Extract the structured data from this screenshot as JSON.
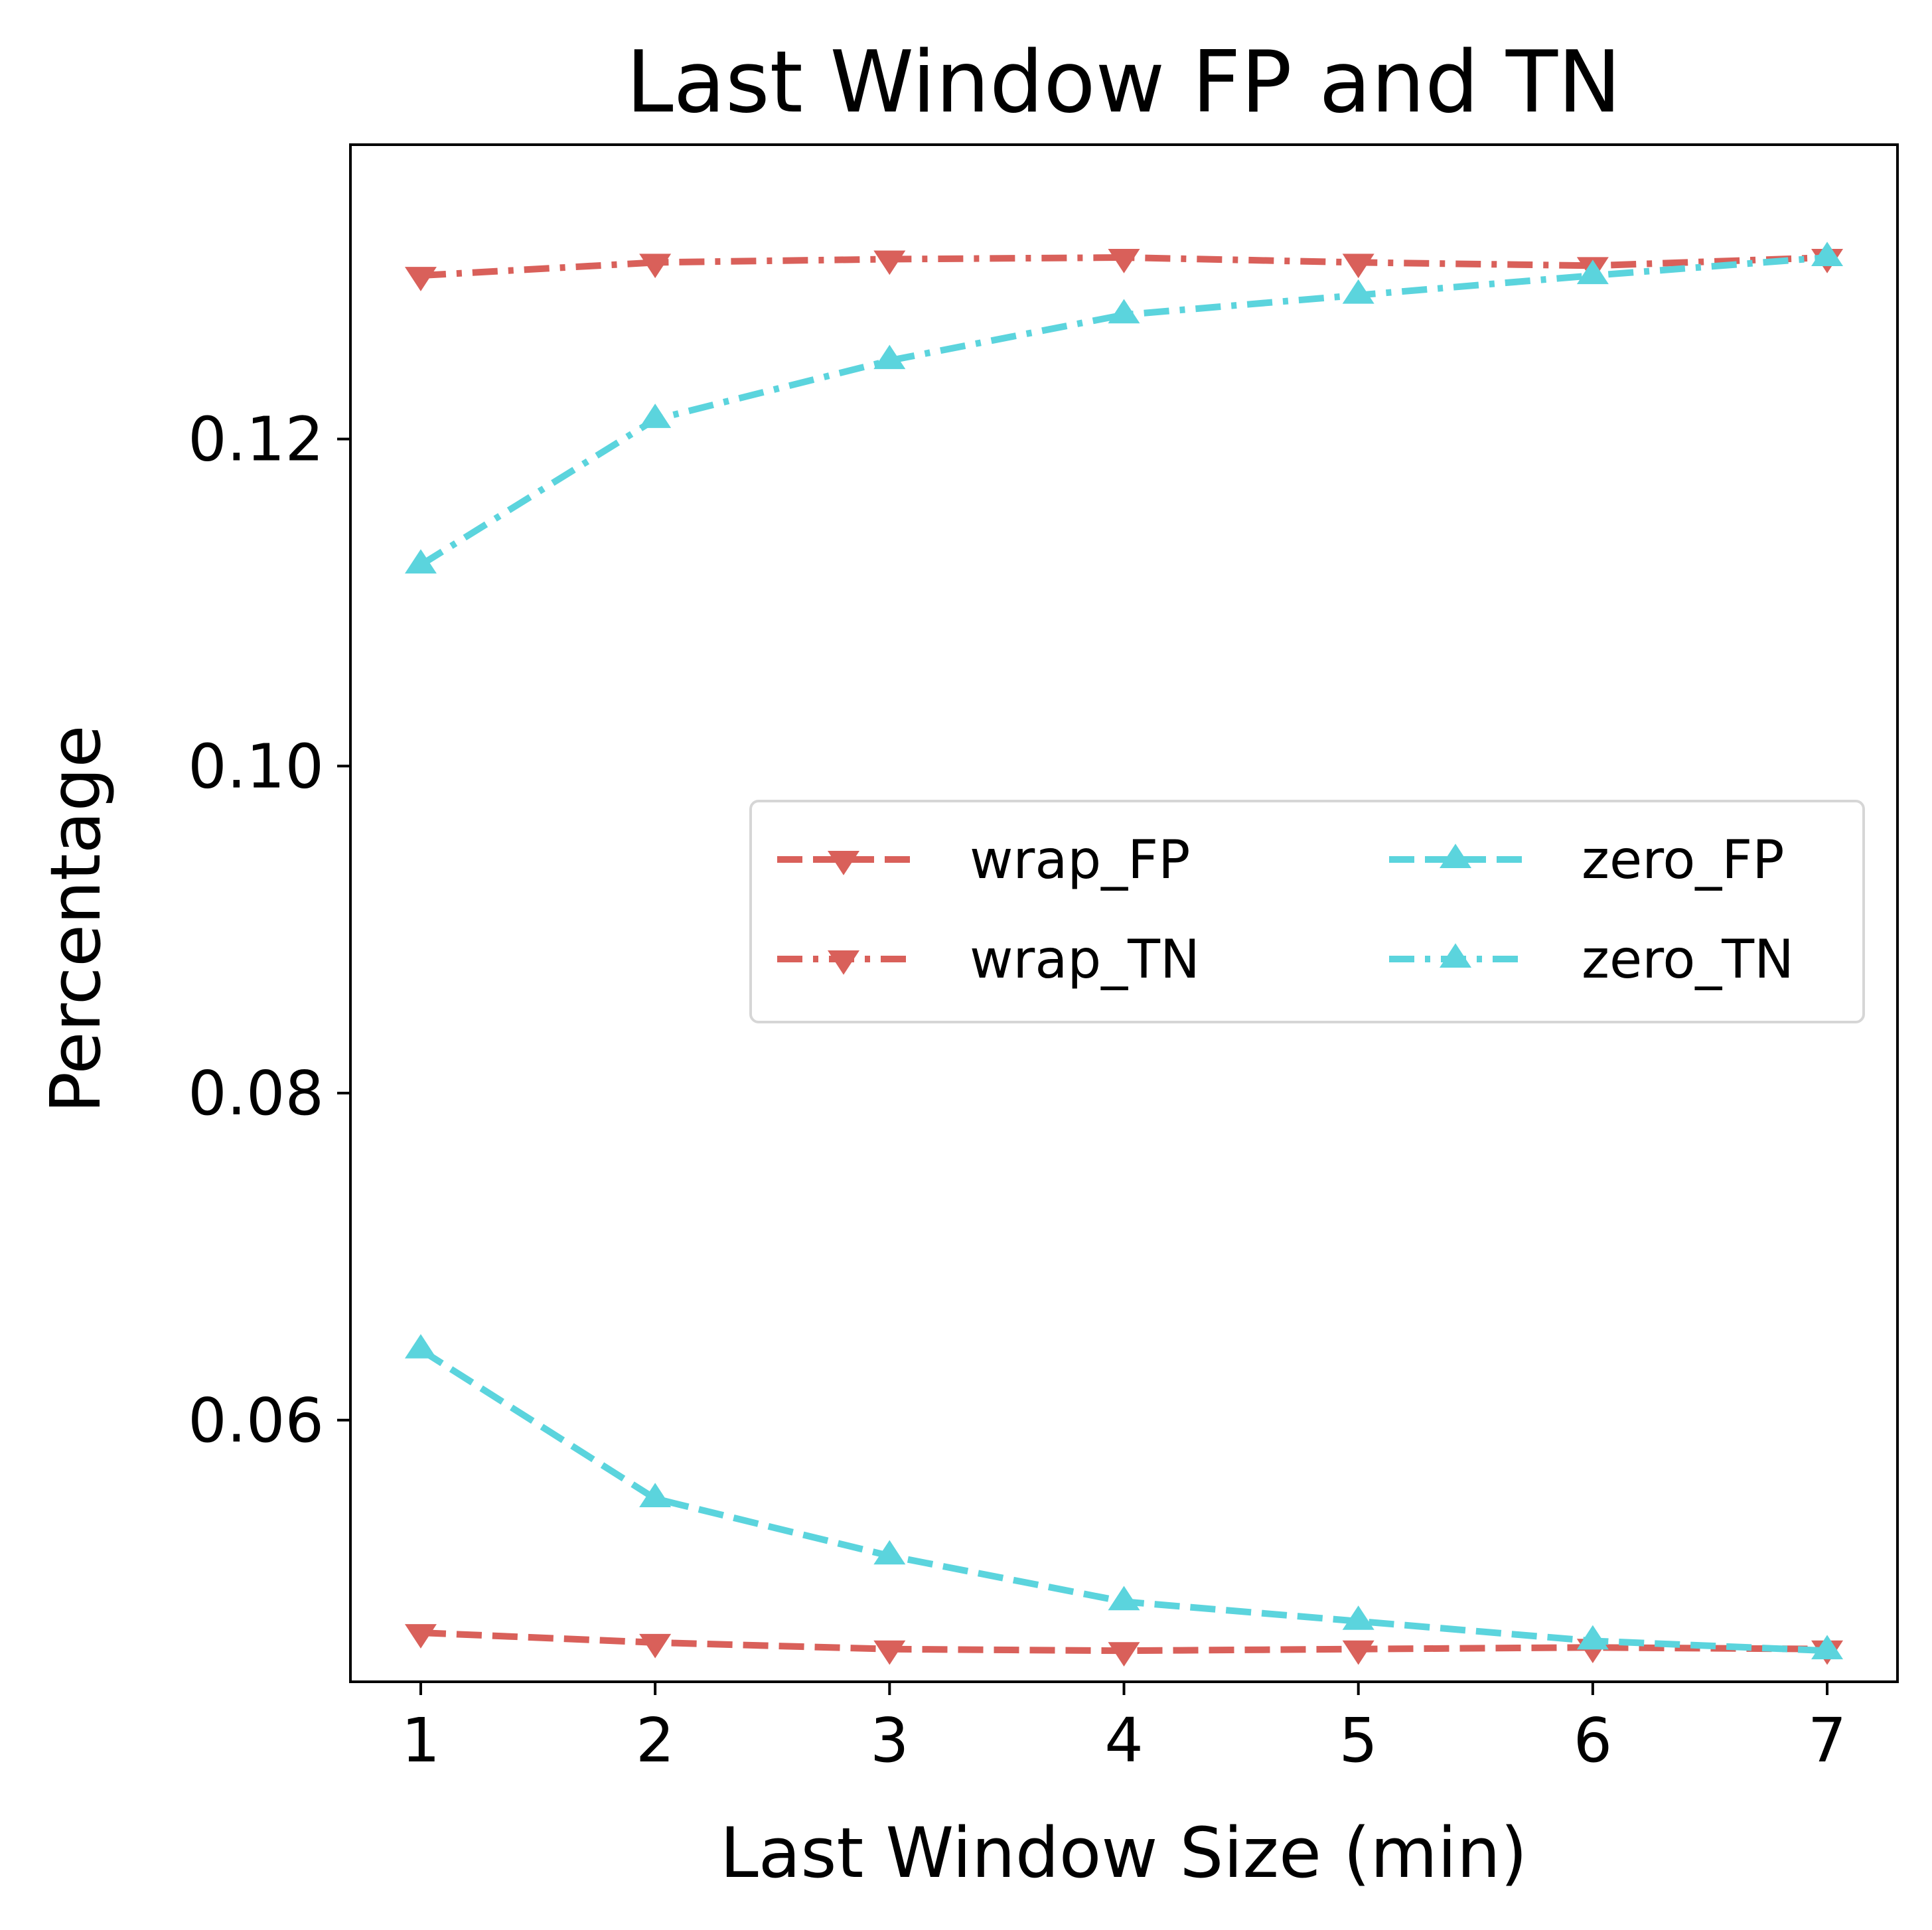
{
  "chart_data": {
    "type": "line",
    "title": "Last Window FP and TN",
    "xlabel": "Last Window Size (min)",
    "ylabel": "Percentage",
    "x": [
      1,
      2,
      3,
      4,
      5,
      6,
      7
    ],
    "x_ticks": [
      "1",
      "2",
      "3",
      "4",
      "5",
      "6",
      "7"
    ],
    "y_ticks": [
      "0.06",
      "0.08",
      "0.10",
      "0.12"
    ],
    "y_tick_values": [
      0.06,
      0.08,
      0.1,
      0.12
    ],
    "xlim": [
      0.7,
      7.3
    ],
    "ylim": [
      0.044,
      0.138
    ],
    "grid": false,
    "legend_placement": "center-right",
    "legend_columns": 2,
    "series": [
      {
        "name": "wrap_FP",
        "color": "#d9605a",
        "marker": "triangle-down",
        "linestyle": "dashed",
        "values": [
          0.047,
          0.0464,
          0.046,
          0.0459,
          0.046,
          0.0461,
          0.046
        ]
      },
      {
        "name": "wrap_TN",
        "color": "#d9605a",
        "marker": "triangle-down",
        "linestyle": "dashdot",
        "values": [
          0.13,
          0.1308,
          0.131,
          0.1311,
          0.1308,
          0.1306,
          0.1311
        ]
      },
      {
        "name": "zero_FP",
        "color": "#5bd4dd",
        "marker": "triangle-up",
        "linestyle": "dashed",
        "values": [
          0.0643,
          0.0552,
          0.0517,
          0.0489,
          0.0477,
          0.0465,
          0.0459
        ]
      },
      {
        "name": "zero_TN",
        "color": "#5bd4dd",
        "marker": "triangle-up",
        "linestyle": "dashdot",
        "values": [
          0.1123,
          0.1212,
          0.1248,
          0.1276,
          0.1288,
          0.13,
          0.1311
        ]
      }
    ]
  }
}
